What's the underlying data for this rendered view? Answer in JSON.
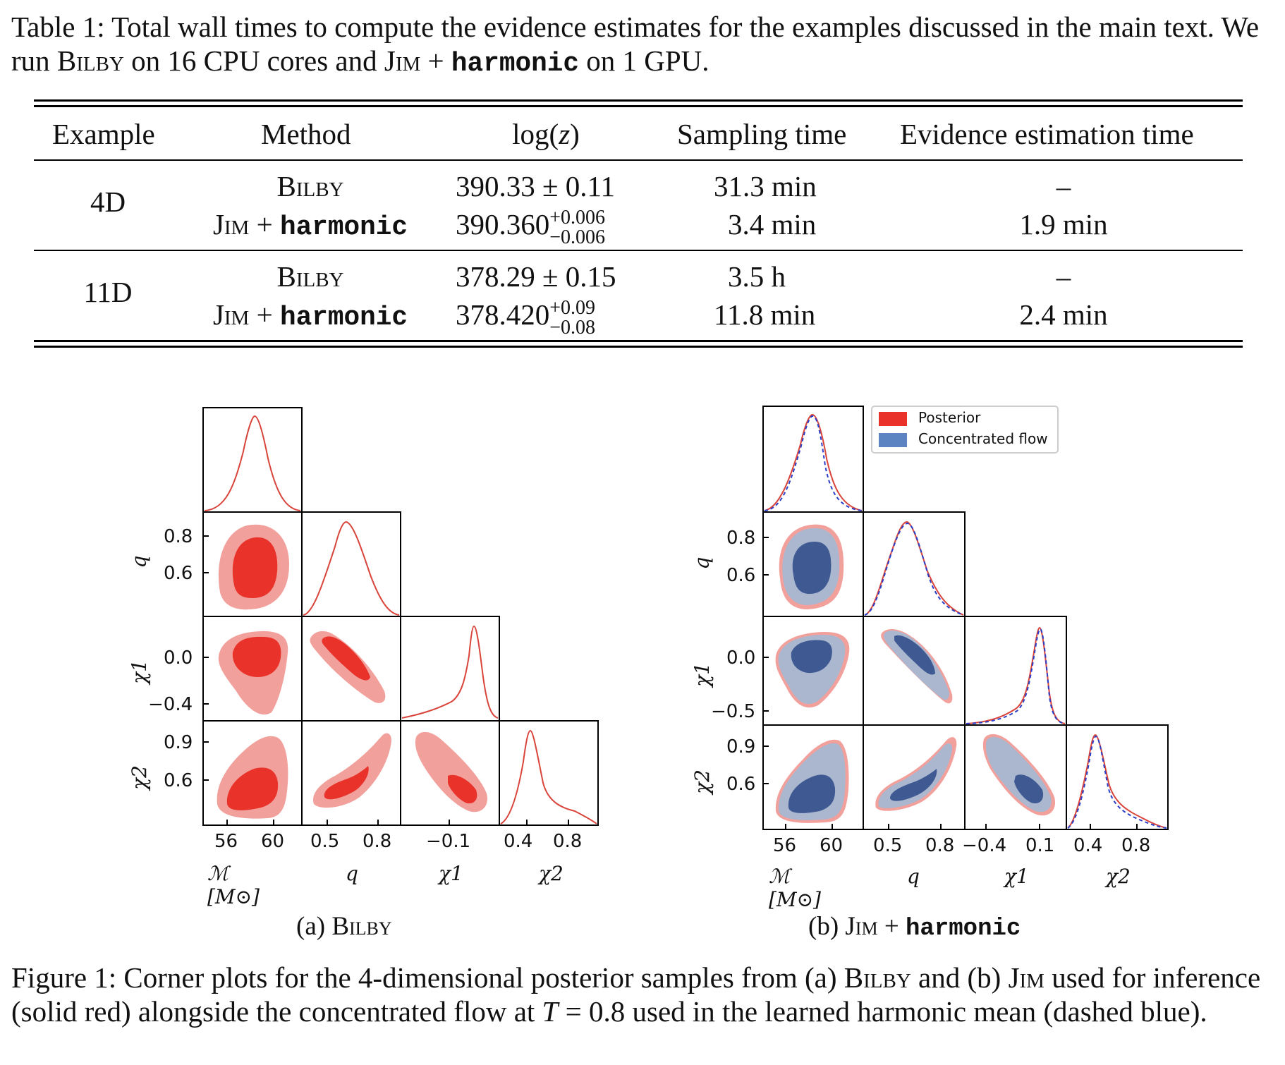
{
  "table": {
    "caption_prefix": "Table 1: Total wall times to compute the evidence estimates for the examples discussed in the main text. We run ",
    "caption_bilby": "Bilby",
    "caption_mid": " on 16 CPU cores and ",
    "caption_jim": "Jim",
    "caption_plus": " + ",
    "caption_harmonic": "harmonic",
    "caption_suffix": " on 1 GPU.",
    "headers": [
      "Example",
      "Method",
      "log(z)",
      "Sampling time",
      "Evidence estimation time"
    ],
    "groups": [
      {
        "example": "4D",
        "rows": [
          {
            "method": "Bilby",
            "logz": "390.33 ± 0.11",
            "sampling": "31.3 min",
            "evidence": "–"
          },
          {
            "method_jim": "Jim",
            "method_plus": " + ",
            "method_harm": "harmonic",
            "logz_base": "390.360",
            "logz_up": "+0.006",
            "logz_down": "−0.006",
            "sampling": "3.4 min",
            "evidence": "1.9 min"
          }
        ]
      },
      {
        "example": "11D",
        "rows": [
          {
            "method": "Bilby",
            "logz": "378.29 ± 0.15",
            "sampling": "3.5 h",
            "evidence": "–"
          },
          {
            "method_jim": "Jim",
            "method_plus": " + ",
            "method_harm": "harmonic",
            "logz_base": "378.420",
            "logz_up": "+0.09",
            "logz_down": "−0.08",
            "sampling": "11.8 min",
            "evidence": "2.4 min"
          }
        ]
      }
    ]
  },
  "figure": {
    "legend": {
      "posterior": "Posterior",
      "flow": "Concentrated flow"
    },
    "colors": {
      "red_dark": "#e8322a",
      "red_light": "#f2a09c",
      "red_line": "#d9443b",
      "blue_dark": "#3f5a93",
      "blue_light": "#aab7cf",
      "blue_dash": "#2b3ec8"
    },
    "panel_a": {
      "label_prefix": "(a) ",
      "label_name": "Bilby",
      "ylabels": [
        "q",
        "χ1",
        "χ2"
      ],
      "xlabels": [
        "ℳ  [M⊙]",
        "q",
        "χ1",
        "χ2"
      ],
      "yticks_q": [
        "0.8",
        "0.6"
      ],
      "yticks_chi1": [
        "0.0",
        "−0.4"
      ],
      "yticks_chi2": [
        "0.9",
        "0.6"
      ],
      "xticks_M": [
        "56",
        "60"
      ],
      "xticks_q": [
        "0.5",
        "0.8"
      ],
      "xticks_chi1": [
        "−0.1"
      ],
      "xticks_chi2": [
        "0.4",
        "0.8"
      ]
    },
    "panel_b": {
      "label_prefix": "(b) ",
      "label_jim": "Jim",
      "label_plus": " + ",
      "label_harm": "harmonic",
      "ylabels": [
        "q",
        "χ1",
        "χ2"
      ],
      "xlabels": [
        "ℳ  [M⊙]",
        "q",
        "χ1",
        "χ2"
      ],
      "yticks_q": [
        "0.8",
        "0.6"
      ],
      "yticks_chi1": [
        "0.0",
        "−0.5"
      ],
      "yticks_chi2": [
        "0.9",
        "0.6"
      ],
      "xticks_M": [
        "56",
        "60"
      ],
      "xticks_q": [
        "0.5",
        "0.8"
      ],
      "xticks_chi1": [
        "−0.4",
        "0.1"
      ],
      "xticks_chi2": [
        "0.4",
        "0.8"
      ]
    },
    "caption_prefix": "Figure 1: Corner plots for the 4-dimensional posterior samples from (a) ",
    "caption_bilby": "Bilby",
    "caption_mid": " and (b) ",
    "caption_jim": "Jim",
    "caption_rest1": " used for inference (solid red) alongside the concentrated flow at ",
    "caption_T": "T",
    "caption_rest2": " = 0.8 used in the learned harmonic mean (dashed blue)."
  }
}
